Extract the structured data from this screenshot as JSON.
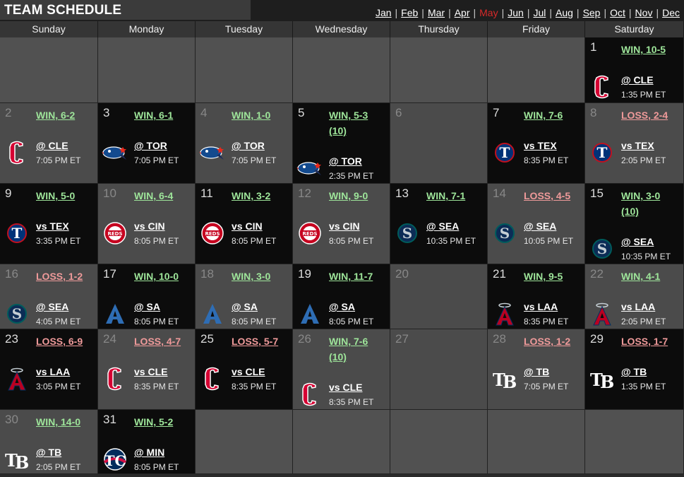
{
  "title": "TEAM SCHEDULE",
  "months": [
    "Jan",
    "Feb",
    "Mar",
    "Apr",
    "May",
    "Jun",
    "Jul",
    "Aug",
    "Sep",
    "Oct",
    "Nov",
    "Dec"
  ],
  "current_month": "May",
  "weekdays": [
    "Sunday",
    "Monday",
    "Tuesday",
    "Wednesday",
    "Thursday",
    "Friday",
    "Saturday"
  ],
  "start_weekday": 6,
  "days_in_month": 31,
  "games": [
    {
      "day": 1,
      "result": "WIN, 10-5",
      "opp": "@ CLE",
      "time": "1:35 PM ET",
      "logo": "guardians-icon"
    },
    {
      "day": 2,
      "result": "WIN, 6-2",
      "opp": "@ CLE",
      "time": "7:05 PM ET",
      "logo": "guardians-icon"
    },
    {
      "day": 3,
      "result": "WIN, 6-1",
      "opp": "@ TOR",
      "time": "7:05 PM ET",
      "logo": "blue-jays-icon"
    },
    {
      "day": 4,
      "result": "WIN, 1-0",
      "opp": "@ TOR",
      "time": "7:05 PM ET",
      "logo": "blue-jays-icon"
    },
    {
      "day": 5,
      "result": "WIN, 5-3 (10)",
      "opp": "@ TOR",
      "time": "2:35 PM ET",
      "logo": "blue-jays-icon"
    },
    {
      "day": 7,
      "result": "WIN, 7-6",
      "opp": "vs TEX",
      "time": "8:35 PM ET",
      "logo": "rangers-icon"
    },
    {
      "day": 8,
      "result": "LOSS, 2-4",
      "opp": "vs TEX",
      "time": "2:05 PM ET",
      "logo": "rangers-icon"
    },
    {
      "day": 9,
      "result": "WIN, 5-0",
      "opp": "vs TEX",
      "time": "3:35 PM ET",
      "logo": "rangers-icon"
    },
    {
      "day": 10,
      "result": "WIN, 6-4",
      "opp": "vs CIN",
      "time": "8:05 PM ET",
      "logo": "reds-icon"
    },
    {
      "day": 11,
      "result": "WIN, 3-2",
      "opp": "vs CIN",
      "time": "8:05 PM ET",
      "logo": "reds-icon"
    },
    {
      "day": 12,
      "result": "WIN, 9-0",
      "opp": "vs CIN",
      "time": "8:05 PM ET",
      "logo": "reds-icon"
    },
    {
      "day": 13,
      "result": "WIN, 7-1",
      "opp": "@ SEA",
      "time": "10:35 PM ET",
      "logo": "mariners-icon"
    },
    {
      "day": 14,
      "result": "LOSS, 4-5",
      "opp": "@ SEA",
      "time": "10:05 PM ET",
      "logo": "mariners-icon"
    },
    {
      "day": 15,
      "result": "WIN, 3-0 (10)",
      "opp": "@ SEA",
      "time": "10:35 PM ET",
      "logo": "mariners-icon"
    },
    {
      "day": 16,
      "result": "LOSS, 1-2",
      "opp": "@ SEA",
      "time": "4:05 PM ET",
      "logo": "mariners-icon"
    },
    {
      "day": 17,
      "result": "WIN, 10-0",
      "opp": "@ SA",
      "time": "8:05 PM ET",
      "logo": "athletics-icon"
    },
    {
      "day": 18,
      "result": "WIN, 3-0",
      "opp": "@ SA",
      "time": "8:05 PM ET",
      "logo": "athletics-icon"
    },
    {
      "day": 19,
      "result": "WIN, 11-7",
      "opp": "@ SA",
      "time": "8:05 PM ET",
      "logo": "athletics-icon"
    },
    {
      "day": 21,
      "result": "WIN, 9-5",
      "opp": "vs LAA",
      "time": "8:35 PM ET",
      "logo": "angels-icon"
    },
    {
      "day": 22,
      "result": "WIN, 4-1",
      "opp": "vs LAA",
      "time": "2:05 PM ET",
      "logo": "angels-icon"
    },
    {
      "day": 23,
      "result": "LOSS, 6-9",
      "opp": "vs LAA",
      "time": "3:05 PM ET",
      "logo": "angels-icon"
    },
    {
      "day": 24,
      "result": "LOSS, 4-7",
      "opp": "vs CLE",
      "time": "8:35 PM ET",
      "logo": "guardians-icon"
    },
    {
      "day": 25,
      "result": "LOSS, 5-7",
      "opp": "vs CLE",
      "time": "8:35 PM ET",
      "logo": "guardians-icon"
    },
    {
      "day": 26,
      "result": "WIN, 7-6 (10)",
      "opp": "vs CLE",
      "time": "8:35 PM ET",
      "logo": "guardians-icon"
    },
    {
      "day": 28,
      "result": "LOSS, 1-2",
      "opp": "@ TB",
      "time": "7:05 PM ET",
      "logo": "rays-icon"
    },
    {
      "day": 29,
      "result": "LOSS, 1-7",
      "opp": "@ TB",
      "time": "1:35 PM ET",
      "logo": "rays-icon"
    },
    {
      "day": 30,
      "result": "WIN, 14-0",
      "opp": "@ TB",
      "time": "2:05 PM ET",
      "logo": "rays-icon"
    },
    {
      "day": 31,
      "result": "WIN, 5-2",
      "opp": "@ MIN",
      "time": "8:05 PM ET",
      "logo": "twins-icon"
    }
  ],
  "colors": {
    "win": "#9ee59a",
    "loss": "#ef9a9a",
    "current_month": "#d82a2a",
    "played_bg": "#0c0c0c",
    "empty_bg": "#4b4b4b"
  }
}
